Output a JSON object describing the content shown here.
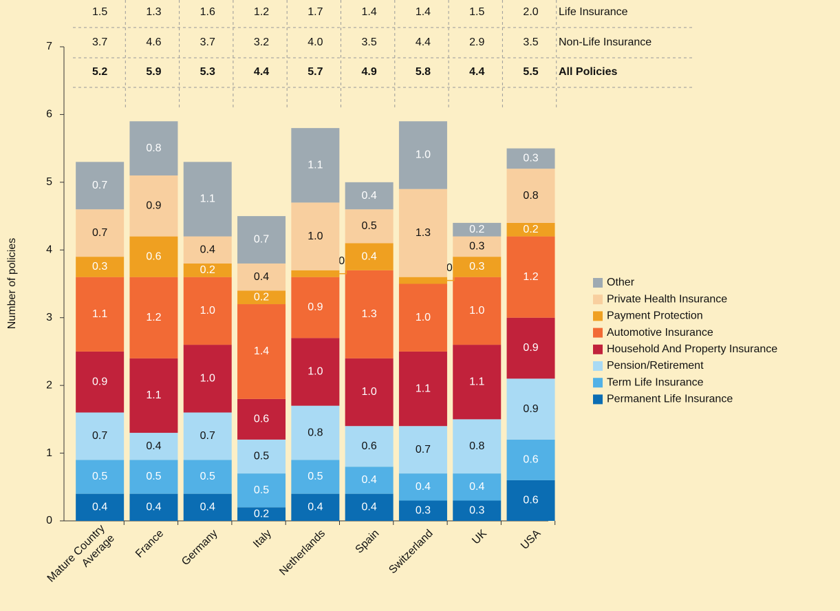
{
  "chart_data": {
    "type": "stacked-bar",
    "y_label": "Number of policies",
    "categories": [
      "Mature Country Average",
      "France",
      "Germany",
      "Italy",
      "Netherlands",
      "Spain",
      "Switzerland",
      "UK",
      "USA"
    ],
    "ylim": [
      0,
      7
    ],
    "yticks": [
      0,
      1,
      2,
      3,
      4,
      5,
      6,
      7
    ],
    "series": [
      {
        "name": "Permanent Life Insurance",
        "color": "#0b6db3",
        "label_color": "#ffffff",
        "values": [
          0.4,
          0.4,
          0.4,
          0.2,
          0.4,
          0.4,
          0.3,
          0.3,
          0.6
        ],
        "value_labels": [
          "0.4",
          "0.4",
          "0.4",
          "0.2",
          "0.4",
          "0.4",
          "0.3",
          "0.3",
          "0.6"
        ]
      },
      {
        "name": "Term Life Insurance",
        "color": "#52b1e6",
        "label_color": "#ffffff",
        "values": [
          0.5,
          0.5,
          0.5,
          0.5,
          0.5,
          0.4,
          0.4,
          0.4,
          0.6
        ],
        "value_labels": [
          "0.5",
          "0.5",
          "0.5",
          "0.5",
          "0.5",
          "0.4",
          "0.4",
          "0.4",
          "0.6"
        ]
      },
      {
        "name": "Pension/Retirement",
        "color": "#a9daf4",
        "label_color": "#111111",
        "values": [
          0.7,
          0.4,
          0.7,
          0.5,
          0.8,
          0.6,
          0.7,
          0.8,
          0.9
        ],
        "value_labels": [
          "0.7",
          "0.4",
          "0.7",
          "0.5",
          "0.8",
          "0.6",
          "0.7",
          "0.8",
          "0.9"
        ]
      },
      {
        "name": "Household And Property Insurance",
        "color": "#c1223b",
        "label_color": "#ffffff",
        "values": [
          0.9,
          1.1,
          1.0,
          0.6,
          1.0,
          1.0,
          1.1,
          1.1,
          0.9
        ],
        "value_labels": [
          "0.9",
          "1.1",
          "1.0",
          "0.6",
          "1.0",
          "1.0",
          "1.1",
          "1.1",
          "0.9"
        ]
      },
      {
        "name": "Automotive Insurance",
        "color": "#f26a35",
        "label_color": "#ffffff",
        "values": [
          1.1,
          1.2,
          1.0,
          1.4,
          0.9,
          1.3,
          1.0,
          1.0,
          1.2
        ],
        "value_labels": [
          "1.1",
          "1.2",
          "1.0",
          "1.4",
          "0.9",
          "1.3",
          "1.0",
          "1.0",
          "1.2"
        ]
      },
      {
        "name": "Payment Protection",
        "color": "#efa021",
        "label_color": "#ffffff",
        "values": [
          0.3,
          0.6,
          0.2,
          0.2,
          0.1,
          0.4,
          0.1,
          0.3,
          0.2
        ],
        "value_labels": [
          "0.3",
          "0.6",
          "0.2",
          "0.2",
          "0.1",
          "0.4",
          "0.1",
          "0.3",
          "0.2"
        ]
      },
      {
        "name": "Private Health Insurance",
        "color": "#f8cf9f",
        "label_color": "#111111",
        "values": [
          0.7,
          0.9,
          0.4,
          0.4,
          1.0,
          0.5,
          1.3,
          0.3,
          0.8
        ],
        "value_labels": [
          "0.7",
          "0.9",
          "0.4",
          "0.4",
          "1.0",
          "0.5",
          "1.3",
          "0.3",
          "0.8"
        ]
      },
      {
        "name": "Other",
        "color": "#9eaab2",
        "label_color": "#ffffff",
        "values": [
          0.7,
          0.8,
          1.1,
          0.7,
          1.1,
          0.4,
          1.0,
          0.2,
          0.3
        ],
        "value_labels": [
          "0.7",
          "0.8",
          "1.1",
          "0.7",
          "1.1",
          "0.4",
          "1.0",
          "0.2",
          "0.3"
        ]
      }
    ],
    "table": [
      {
        "label": "Life Insurance",
        "bold": false,
        "cells": [
          "1.5",
          "1.3",
          "1.6",
          "1.2",
          "1.7",
          "1.4",
          "1.4",
          "1.5",
          "2.0"
        ]
      },
      {
        "label": "Non-Life Insurance",
        "bold": false,
        "cells": [
          "3.7",
          "4.6",
          "3.7",
          "3.2",
          "4.0",
          "3.5",
          "4.4",
          "2.9",
          "3.5"
        ]
      },
      {
        "label": "All Policies",
        "bold": true,
        "cells": [
          "5.2",
          "5.9",
          "5.3",
          "4.4",
          "5.7",
          "4.9",
          "5.8",
          "4.4",
          "5.5"
        ]
      }
    ]
  }
}
